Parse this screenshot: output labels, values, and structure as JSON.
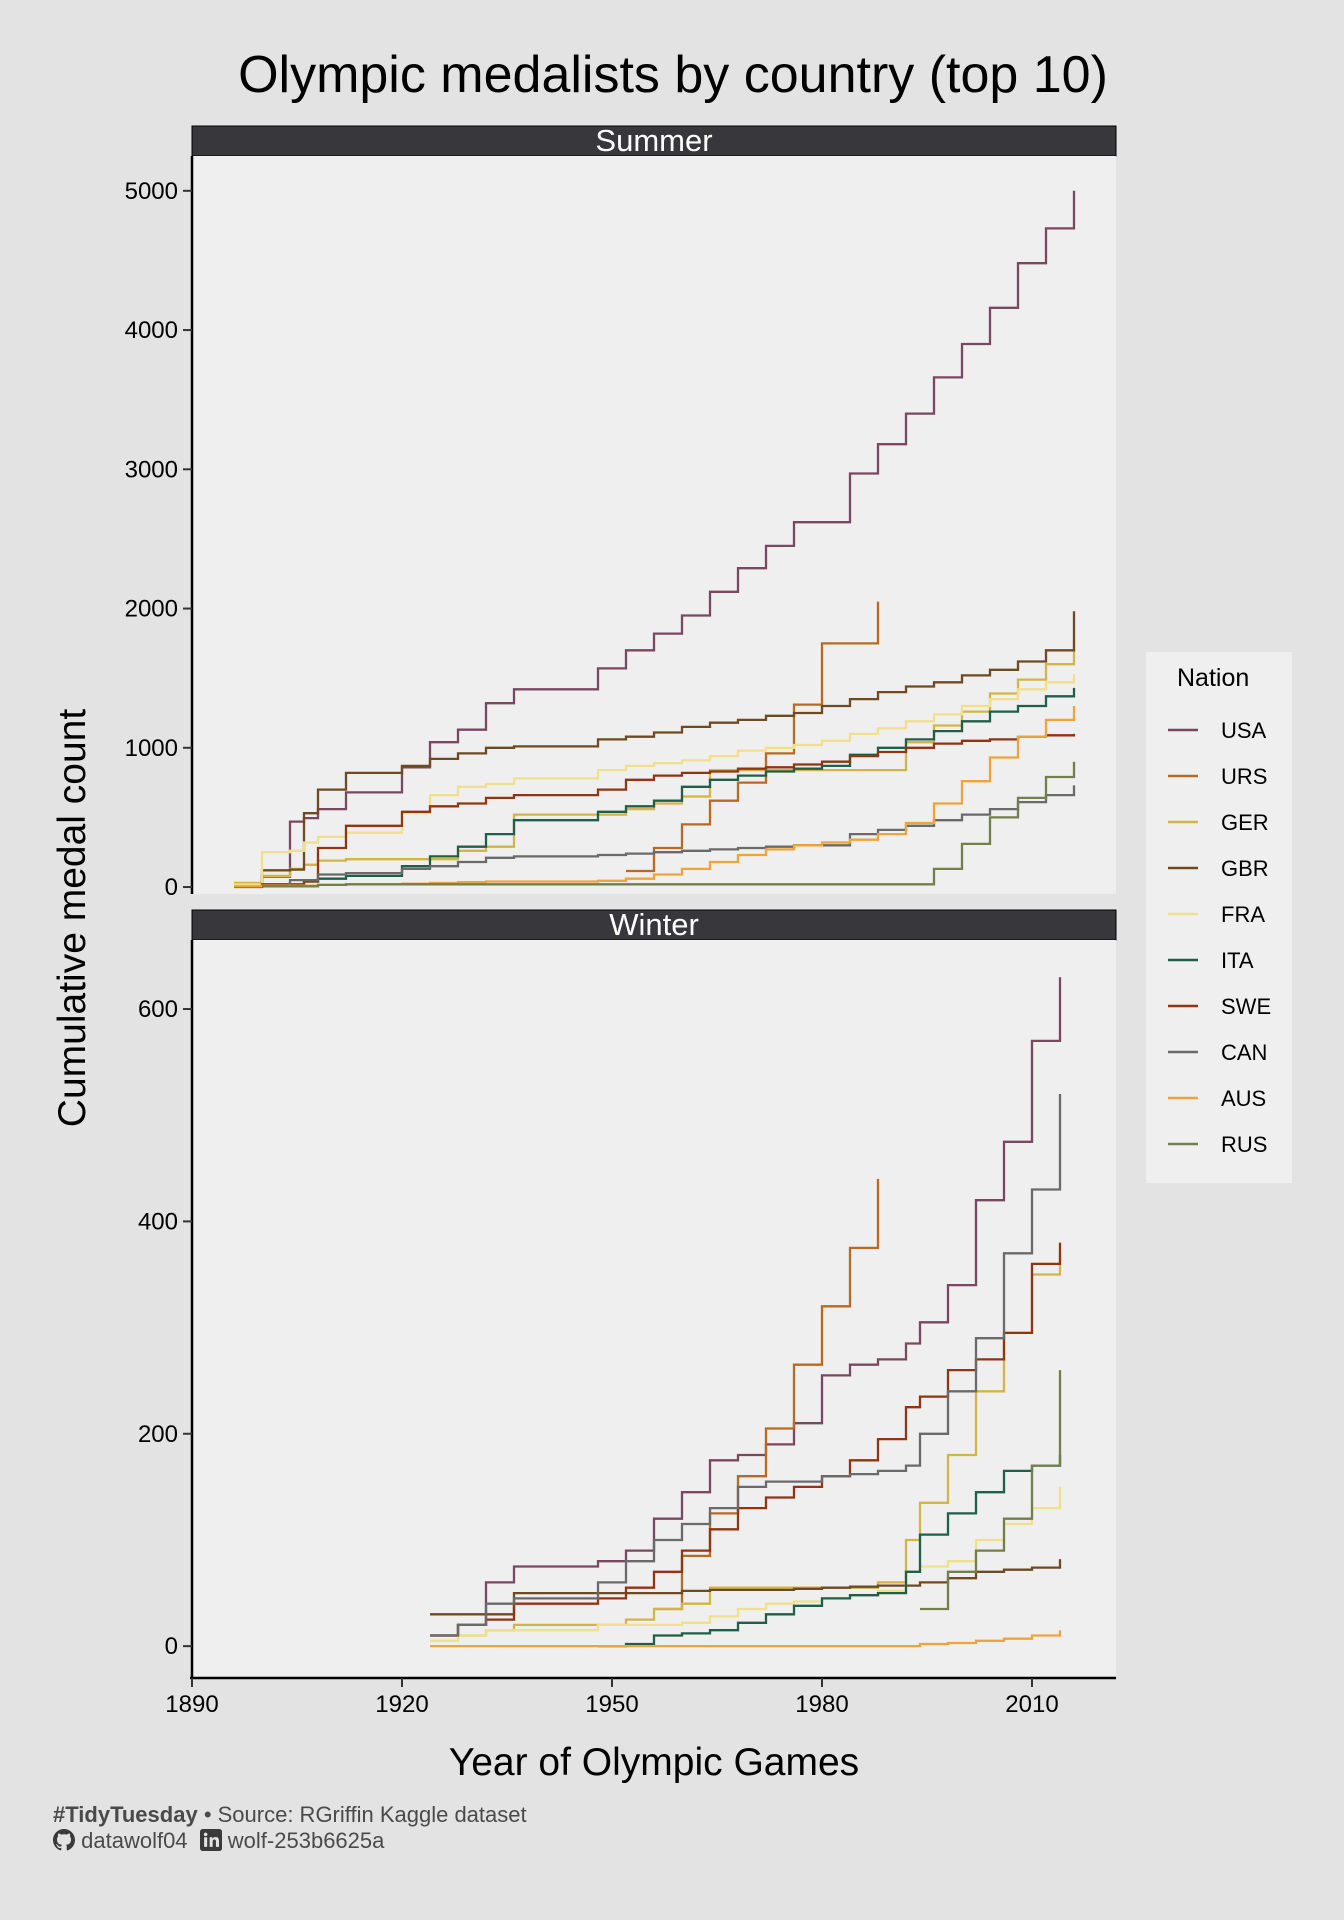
{
  "colors": {
    "USA": "#7a4761",
    "URS": "#b86a22",
    "GER": "#d3b446",
    "GBR": "#6e4a22",
    "FRA": "#f0e08a",
    "ITA": "#1f5e48",
    "SWE": "#8f3512",
    "CAN": "#6a6a6a",
    "AUS": "#efa43a",
    "RUS": "#707f4c",
    "page_bg": "#e3e3e3",
    "panel_bg": "#efefef",
    "strip_bg": "#38373c"
  },
  "caption": {
    "hashtag": "#TidyTuesday",
    "source": "• Source: RGriffin Kaggle dataset",
    "github_icon": "github-icon",
    "github": "datawolf04",
    "linkedin_icon": "linkedin-icon",
    "linkedin": "wolf-253b6625a"
  },
  "chart_data": {
    "type": "line",
    "step": true,
    "title": "Olympic medalists by country (top 10)",
    "xlabel": "Year of Olympic Games",
    "ylabel": "Cumulative medal count",
    "legend_title": "Nation",
    "legend_position": "right",
    "xlim": [
      1890,
      2022
    ],
    "x_ticks": [
      1890,
      1920,
      1950,
      1980,
      2010
    ],
    "grid": false,
    "panels": [
      {
        "name": "Summer",
        "ylim": [
          -50,
          5250
        ],
        "y_ticks": [
          0,
          1000,
          2000,
          3000,
          4000,
          5000
        ],
        "series": [
          {
            "name": "USA",
            "x": [
              1896,
              1900,
              1904,
              1906,
              1908,
              1912,
              1920,
              1924,
              1928,
              1932,
              1936,
              1948,
              1952,
              1956,
              1960,
              1964,
              1968,
              1972,
              1976,
              1984,
              1988,
              1992,
              1996,
              2000,
              2004,
              2008,
              2012,
              2016
            ],
            "y": [
              20,
              75,
              470,
              495,
              560,
              680,
              860,
              1040,
              1130,
              1320,
              1420,
              1570,
              1700,
              1820,
              1950,
              2120,
              2290,
              2450,
              2620,
              2970,
              3180,
              3400,
              3660,
              3900,
              4160,
              4480,
              4730,
              5000
            ]
          },
          {
            "name": "URS",
            "x": [
              1952,
              1956,
              1960,
              1964,
              1968,
              1972,
              1976,
              1980,
              1988
            ],
            "y": [
              115,
              280,
              450,
              620,
              750,
              960,
              1310,
              1750,
              2050
            ]
          },
          {
            "name": "GER",
            "x": [
              1896,
              1900,
              1904,
              1906,
              1908,
              1912,
              1928,
              1932,
              1936,
              1952,
              1956,
              1960,
              1964,
              1992,
              1996,
              2000,
              2004,
              2008,
              2012,
              2016
            ],
            "y": [
              30,
              80,
              130,
              160,
              190,
              200,
              260,
              290,
              520,
              560,
              600,
              650,
              840,
              1040,
              1160,
              1260,
              1390,
              1490,
              1600,
              1770
            ]
          },
          {
            "name": "GBR",
            "x": [
              1896,
              1900,
              1904,
              1906,
              1908,
              1912,
              1920,
              1924,
              1928,
              1932,
              1936,
              1948,
              1952,
              1956,
              1960,
              1964,
              1968,
              1972,
              1976,
              1980,
              1984,
              1988,
              1992,
              1996,
              2000,
              2004,
              2008,
              2012,
              2016
            ],
            "y": [
              20,
              120,
              125,
              530,
              700,
              820,
              870,
              920,
              960,
              1000,
              1010,
              1060,
              1080,
              1110,
              1150,
              1180,
              1200,
              1230,
              1250,
              1300,
              1350,
              1400,
              1440,
              1470,
              1520,
              1560,
              1620,
              1700,
              1980
            ]
          },
          {
            "name": "FRA",
            "x": [
              1896,
              1900,
              1904,
              1906,
              1908,
              1912,
              1920,
              1924,
              1928,
              1932,
              1936,
              1948,
              1952,
              1956,
              1960,
              1964,
              1968,
              1972,
              1976,
              1980,
              1984,
              1988,
              1992,
              1996,
              2000,
              2004,
              2008,
              2012,
              2016
            ],
            "y": [
              20,
              250,
              260,
              320,
              360,
              390,
              530,
              660,
              720,
              740,
              780,
              840,
              870,
              890,
              910,
              940,
              980,
              1000,
              1020,
              1050,
              1100,
              1140,
              1190,
              1240,
              1300,
              1350,
              1420,
              1470,
              1530
            ]
          },
          {
            "name": "ITA",
            "x": [
              1900,
              1906,
              1908,
              1912,
              1920,
              1924,
              1928,
              1932,
              1936,
              1948,
              1952,
              1956,
              1960,
              1964,
              1968,
              1972,
              1976,
              1980,
              1984,
              1988,
              1992,
              1996,
              2000,
              2004,
              2008,
              2012,
              2016
            ],
            "y": [
              5,
              40,
              60,
              80,
              150,
              220,
              290,
              380,
              480,
              540,
              580,
              620,
              720,
              770,
              800,
              830,
              850,
              870,
              950,
              1000,
              1060,
              1120,
              1190,
              1260,
              1300,
              1370,
              1430
            ]
          },
          {
            "name": "SWE",
            "x": [
              1896,
              1900,
              1906,
              1908,
              1912,
              1920,
              1924,
              1928,
              1932,
              1936,
              1948,
              1952,
              1956,
              1960,
              1964,
              1968,
              1972,
              1976,
              1980,
              1984,
              1988,
              1992,
              1996,
              2000,
              2004,
              2008,
              2012,
              2016
            ],
            "y": [
              0,
              20,
              40,
              280,
              440,
              540,
              580,
              600,
              640,
              660,
              700,
              770,
              800,
              820,
              830,
              850,
              860,
              880,
              900,
              940,
              970,
              1000,
              1030,
              1050,
              1060,
              1080,
              1090,
              1100
            ]
          },
          {
            "name": "CAN",
            "x": [
              1900,
              1904,
              1908,
              1912,
              1920,
              1924,
              1928,
              1932,
              1936,
              1948,
              1952,
              1956,
              1960,
              1964,
              1968,
              1972,
              1976,
              1984,
              1988,
              1992,
              1996,
              2000,
              2004,
              2008,
              2012,
              2016
            ],
            "y": [
              10,
              50,
              90,
              100,
              130,
              150,
              180,
              210,
              220,
              230,
              240,
              250,
              260,
              270,
              280,
              290,
              300,
              380,
              410,
              440,
              480,
              520,
              560,
              610,
              660,
              730
            ]
          },
          {
            "name": "AUS",
            "x": [
              1896,
              1900,
              1904,
              1908,
              1912,
              1920,
              1924,
              1928,
              1932,
              1936,
              1948,
              1952,
              1956,
              1960,
              1964,
              1968,
              1972,
              1976,
              1980,
              1984,
              1988,
              1992,
              1996,
              2000,
              2004,
              2008,
              2012,
              2016
            ],
            "y": [
              5,
              10,
              10,
              15,
              20,
              25,
              30,
              35,
              40,
              40,
              45,
              60,
              90,
              130,
              180,
              230,
              270,
              300,
              320,
              340,
              380,
              460,
              600,
              760,
              930,
              1080,
              1200,
              1300
            ]
          },
          {
            "name": "RUS",
            "x": [
              1900,
              1908,
              1912,
              1992,
              1996,
              2000,
              2004,
              2008,
              2012,
              2016
            ],
            "y": [
              5,
              15,
              20,
              20,
              130,
              310,
              500,
              640,
              790,
              900
            ]
          }
        ]
      },
      {
        "name": "Winter",
        "ylim": [
          -30,
          665
        ],
        "y_ticks": [
          0,
          200,
          400,
          600
        ],
        "series": [
          {
            "name": "USA",
            "x": [
              1924,
              1928,
              1932,
              1936,
              1948,
              1952,
              1956,
              1960,
              1964,
              1968,
              1972,
              1976,
              1980,
              1984,
              1988,
              1992,
              1994,
              1998,
              2002,
              2006,
              2010,
              2014
            ],
            "y": [
              10,
              20,
              60,
              75,
              80,
              90,
              120,
              145,
              175,
              180,
              190,
              210,
              255,
              265,
              270,
              285,
              305,
              340,
              420,
              475,
              570,
              630
            ]
          },
          {
            "name": "URS",
            "x": [
              1956,
              1960,
              1964,
              1968,
              1972,
              1976,
              1980,
              1984,
              1988
            ],
            "y": [
              35,
              85,
              125,
              160,
              205,
              265,
              320,
              375,
              440
            ]
          },
          {
            "name": "GER",
            "x": [
              1928,
              1932,
              1936,
              1948,
              1952,
              1956,
              1960,
              1964,
              1968,
              1972,
              1976,
              1980,
              1984,
              1988,
              1992,
              1994,
              1998,
              2002,
              2006,
              2010,
              2014
            ],
            "y": [
              10,
              15,
              20,
              20,
              25,
              35,
              40,
              55,
              55,
              55,
              55,
              55,
              55,
              60,
              100,
              135,
              180,
              240,
              295,
              350,
              370
            ]
          },
          {
            "name": "GBR",
            "x": [
              1924,
              1928,
              1932,
              1936,
              1948,
              1952,
              1956,
              1960,
              1964,
              1968,
              1972,
              1976,
              1980,
              1984,
              1988,
              1992,
              1994,
              1998,
              2002,
              2006,
              2010,
              2014
            ],
            "y": [
              30,
              30,
              30,
              50,
              50,
              50,
              50,
              52,
              53,
              53,
              53,
              54,
              55,
              56,
              57,
              57,
              60,
              64,
              70,
              72,
              74,
              82
            ]
          },
          {
            "name": "FRA",
            "x": [
              1924,
              1928,
              1932,
              1936,
              1948,
              1952,
              1956,
              1960,
              1964,
              1968,
              1972,
              1976,
              1980,
              1984,
              1988,
              1992,
              1994,
              1998,
              2002,
              2006,
              2010,
              2014
            ],
            "y": [
              5,
              10,
              15,
              15,
              20,
              20,
              20,
              22,
              28,
              35,
              40,
              42,
              45,
              48,
              52,
              70,
              75,
              80,
              100,
              115,
              130,
              150
            ]
          },
          {
            "name": "ITA",
            "x": [
              1948,
              1952,
              1956,
              1960,
              1964,
              1968,
              1972,
              1976,
              1980,
              1984,
              1988,
              1992,
              1994,
              1998,
              2002,
              2006,
              2010,
              2014
            ],
            "y": [
              0,
              2,
              10,
              12,
              15,
              22,
              30,
              38,
              45,
              48,
              50,
              70,
              105,
              125,
              145,
              165,
              170,
              180
            ]
          },
          {
            "name": "SWE",
            "x": [
              1924,
              1928,
              1932,
              1936,
              1948,
              1952,
              1956,
              1960,
              1964,
              1968,
              1972,
              1976,
              1980,
              1984,
              1988,
              1992,
              1994,
              1998,
              2002,
              2006,
              2010,
              2014
            ],
            "y": [
              10,
              20,
              25,
              40,
              45,
              55,
              70,
              90,
              110,
              130,
              140,
              150,
              160,
              175,
              195,
              225,
              235,
              260,
              270,
              295,
              360,
              380
            ]
          },
          {
            "name": "CAN",
            "x": [
              1924,
              1928,
              1932,
              1936,
              1948,
              1952,
              1956,
              1960,
              1964,
              1968,
              1972,
              1976,
              1980,
              1984,
              1988,
              1992,
              1994,
              1998,
              2002,
              2006,
              2010,
              2014
            ],
            "y": [
              10,
              20,
              40,
              45,
              60,
              80,
              100,
              115,
              130,
              150,
              155,
              155,
              160,
              162,
              165,
              170,
              200,
              240,
              290,
              370,
              430,
              520
            ]
          },
          {
            "name": "AUS",
            "x": [
              1924,
              1994,
              1998,
              2002,
              2006,
              2010,
              2014
            ],
            "y": [
              0,
              2,
              3,
              5,
              7,
              10,
              15
            ]
          },
          {
            "name": "RUS",
            "x": [
              1994,
              1998,
              2002,
              2006,
              2010,
              2014
            ],
            "y": [
              35,
              70,
              90,
              120,
              170,
              260
            ]
          }
        ]
      }
    ]
  }
}
